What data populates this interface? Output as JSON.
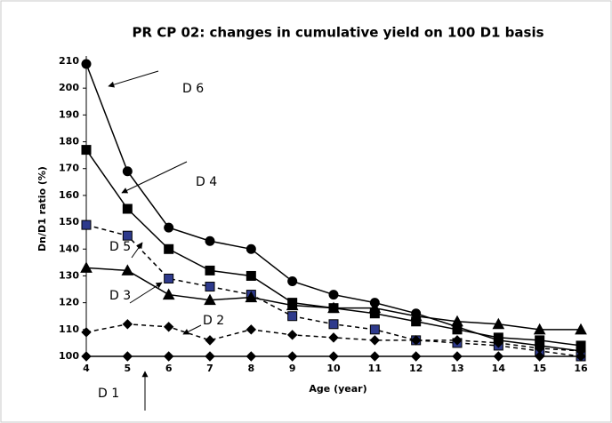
{
  "chart_data": {
    "type": "line",
    "title": "PR CP 02: changes in cumulative yield on 100 D1 basis",
    "x_label": "Age (year)",
    "y_label": "Dn/D1 ratio (%)",
    "x": [
      4,
      5,
      6,
      7,
      8,
      9,
      10,
      11,
      12,
      13,
      14,
      15,
      16
    ],
    "xlim": [
      4,
      16
    ],
    "xticks": [
      4,
      5,
      6,
      7,
      8,
      9,
      10,
      11,
      12,
      13,
      14,
      15,
      16
    ],
    "ylim": [
      100,
      210
    ],
    "yticks": [
      100,
      110,
      120,
      130,
      140,
      150,
      160,
      170,
      180,
      190,
      200,
      210
    ],
    "grid": false,
    "series": [
      {
        "name": "D 6",
        "color": "#000000",
        "marker": "circle",
        "marker_fill": "#000000",
        "dashed": false,
        "values": [
          209,
          169,
          148,
          143,
          140,
          128,
          123,
          120,
          116,
          111,
          106,
          104,
          102
        ]
      },
      {
        "name": "D 4",
        "color": "#000000",
        "marker": "square",
        "marker_fill": "#000000",
        "dashed": false,
        "values": [
          177,
          155,
          140,
          132,
          130,
          120,
          118,
          116,
          113,
          110,
          107,
          106,
          104
        ]
      },
      {
        "name": "D 5",
        "color": "#000000",
        "marker": "square",
        "marker_fill": "#2e3a8c",
        "dashed": true,
        "values": [
          149,
          145,
          129,
          126,
          123,
          115,
          112,
          110,
          106,
          105,
          104,
          102,
          100
        ]
      },
      {
        "name": "D 3",
        "color": "#000000",
        "marker": "triangle",
        "marker_fill": "#000000",
        "dashed": false,
        "values": [
          133,
          132,
          123,
          121,
          122,
          119,
          118,
          118,
          115,
          113,
          112,
          110,
          110
        ]
      },
      {
        "name": "D 2",
        "color": "#000000",
        "marker": "diamond",
        "marker_fill": "#000000",
        "dashed": true,
        "values": [
          109,
          112,
          111,
          106,
          110,
          108,
          107,
          106,
          106,
          106,
          105,
          103,
          102
        ]
      },
      {
        "name": "D 1",
        "color": "#000000",
        "marker": "diamond",
        "marker_fill": "#000000",
        "dashed": false,
        "values": [
          100,
          100,
          100,
          100,
          100,
          100,
          100,
          100,
          100,
          100,
          100,
          100,
          100
        ]
      }
    ]
  }
}
